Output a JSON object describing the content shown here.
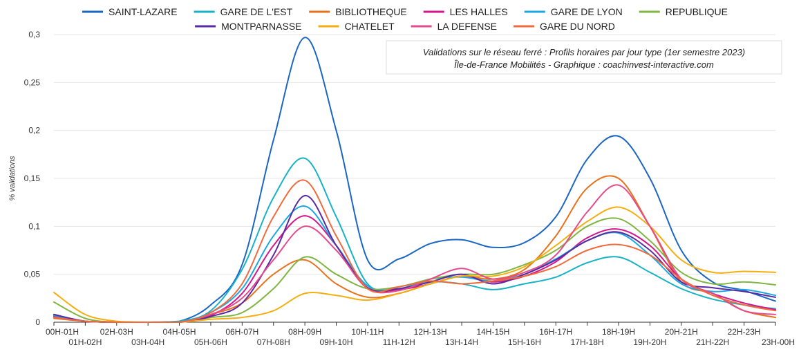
{
  "chart_data": {
    "type": "line",
    "title": "",
    "xlabel": "",
    "ylabel": "% validations",
    "ylim": [
      0,
      0.3
    ],
    "yticks": [
      "0",
      "0,05",
      "0,1",
      "0,15",
      "0,2",
      "0,25",
      "0,3"
    ],
    "grid": true,
    "legend_position": "top",
    "annotation": {
      "line1": "Validations sur le réseau ferré : Profils horaires par jour type (1er semestre 2023)",
      "line2": "Île-de-France Mobilités - Graphique : coachinvest-interactive.com"
    },
    "categories": [
      "00H-01H",
      "01H-02H",
      "02H-03H",
      "03H-04H",
      "04H-05H",
      "05H-06H",
      "06H-07H",
      "07H-08H",
      "08H-09H",
      "09H-10H",
      "10H-11H",
      "11H-12H",
      "12H-13H",
      "13H-14H",
      "14H-15H",
      "15H-16H",
      "16H-17H",
      "17H-18H",
      "18H-19H",
      "19H-20H",
      "20H-21H",
      "21H-22H",
      "22H-23H",
      "23H-00H"
    ],
    "series": [
      {
        "name": "SAINT-LAZARE",
        "color": "#1a66c4",
        "values": [
          0.008,
          0.001,
          0,
          0,
          0.001,
          0.018,
          0.06,
          0.19,
          0.297,
          0.2,
          0.065,
          0.066,
          0.082,
          0.086,
          0.078,
          0.083,
          0.11,
          0.17,
          0.194,
          0.15,
          0.075,
          0.042,
          0.033,
          0.022
        ]
      },
      {
        "name": "GARE DE L'EST",
        "color": "#18b2c6",
        "values": [
          0.006,
          0.001,
          0,
          0,
          0.001,
          0.012,
          0.055,
          0.13,
          0.171,
          0.11,
          0.04,
          0.035,
          0.042,
          0.04,
          0.034,
          0.04,
          0.047,
          0.062,
          0.068,
          0.052,
          0.035,
          0.024,
          0.018,
          0.014
        ]
      },
      {
        "name": "BIBLIOTHEQUE",
        "color": "#e8711b",
        "values": [
          0.004,
          0.001,
          0,
          0,
          0,
          0.008,
          0.02,
          0.05,
          0.065,
          0.04,
          0.026,
          0.03,
          0.04,
          0.048,
          0.045,
          0.055,
          0.09,
          0.14,
          0.15,
          0.1,
          0.042,
          0.03,
          0.012,
          0.005
        ]
      },
      {
        "name": "LES HALLES",
        "color": "#d4168c",
        "values": [
          0.006,
          0.001,
          0,
          0,
          0,
          0.007,
          0.03,
          0.08,
          0.111,
          0.08,
          0.035,
          0.034,
          0.04,
          0.048,
          0.042,
          0.048,
          0.063,
          0.088,
          0.097,
          0.08,
          0.045,
          0.03,
          0.02,
          0.013
        ]
      },
      {
        "name": "GARE DE LYON",
        "color": "#1aa7e2",
        "values": [
          0.007,
          0.001,
          0,
          0,
          0,
          0.01,
          0.035,
          0.09,
          0.121,
          0.08,
          0.038,
          0.035,
          0.045,
          0.047,
          0.043,
          0.05,
          0.066,
          0.085,
          0.093,
          0.07,
          0.04,
          0.032,
          0.034,
          0.028
        ]
      },
      {
        "name": "REPUBLIQUE",
        "color": "#7fb541",
        "values": [
          0.021,
          0.004,
          0,
          0,
          0,
          0.005,
          0.01,
          0.035,
          0.068,
          0.05,
          0.035,
          0.037,
          0.045,
          0.05,
          0.05,
          0.06,
          0.075,
          0.1,
          0.108,
          0.085,
          0.052,
          0.04,
          0.042,
          0.039
        ]
      },
      {
        "name": "MONTPARNASSE",
        "color": "#5a2aa0",
        "values": [
          0.008,
          0.001,
          0,
          0,
          0,
          0.006,
          0.02,
          0.07,
          0.132,
          0.08,
          0.036,
          0.035,
          0.042,
          0.05,
          0.04,
          0.05,
          0.065,
          0.085,
          0.094,
          0.075,
          0.042,
          0.036,
          0.032,
          0.026
        ]
      },
      {
        "name": "CHATELET",
        "color": "#f5ae12",
        "values": [
          0.031,
          0.008,
          0.001,
          0,
          0,
          0.003,
          0.005,
          0.012,
          0.03,
          0.028,
          0.023,
          0.03,
          0.04,
          0.048,
          0.048,
          0.058,
          0.08,
          0.105,
          0.12,
          0.1,
          0.065,
          0.052,
          0.053,
          0.052
        ]
      },
      {
        "name": "LA DEFENSE",
        "color": "#e34b8c",
        "values": [
          0.005,
          0.001,
          0,
          0,
          0,
          0.008,
          0.025,
          0.065,
          0.1,
          0.075,
          0.035,
          0.033,
          0.045,
          0.056,
          0.045,
          0.052,
          0.07,
          0.115,
          0.143,
          0.1,
          0.045,
          0.03,
          0.012,
          0.008
        ]
      },
      {
        "name": "GARE DU NORD",
        "color": "#f06a3c",
        "values": [
          0.005,
          0.001,
          0,
          0,
          0,
          0.01,
          0.04,
          0.11,
          0.148,
          0.09,
          0.035,
          0.037,
          0.043,
          0.04,
          0.043,
          0.048,
          0.058,
          0.075,
          0.081,
          0.07,
          0.045,
          0.028,
          0.018,
          0.012
        ]
      }
    ]
  }
}
